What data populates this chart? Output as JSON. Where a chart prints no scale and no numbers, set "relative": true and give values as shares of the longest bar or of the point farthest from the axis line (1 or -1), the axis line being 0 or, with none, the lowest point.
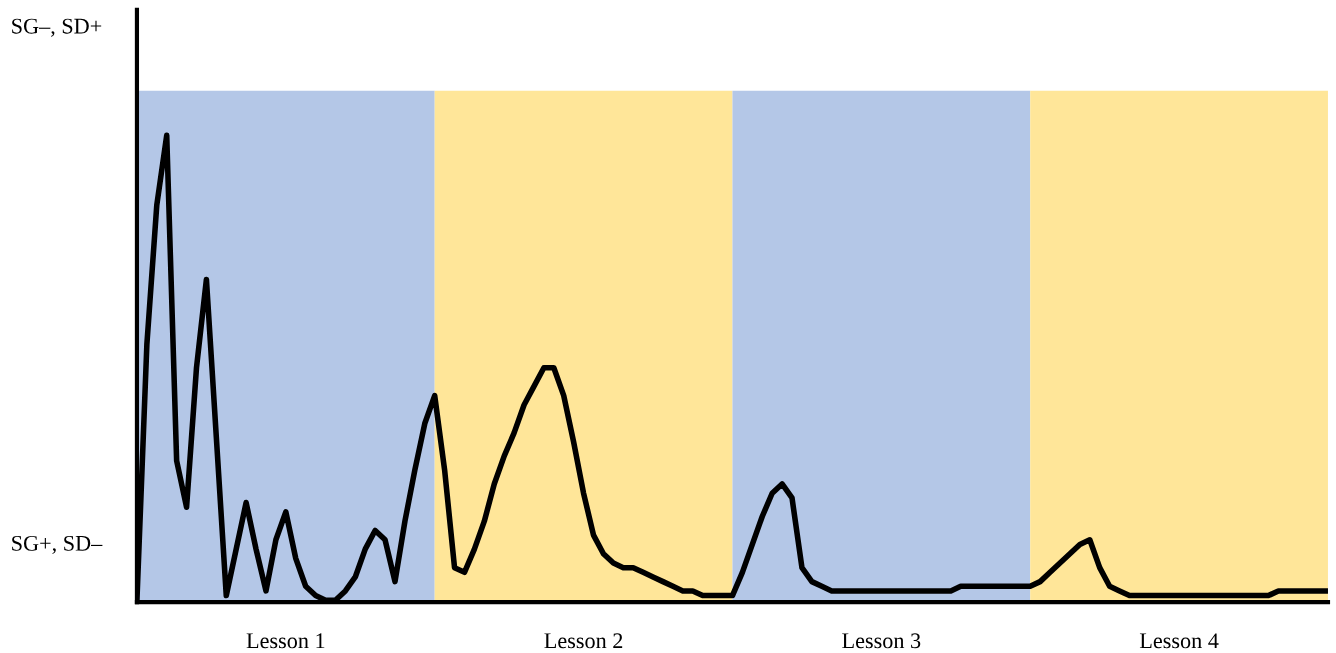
{
  "chart_data": {
    "type": "line",
    "relative": true,
    "annotations": [
      "SG–, SD+",
      "SG+, SD–"
    ],
    "categories": [
      null,
      null,
      null,
      null,
      null,
      null,
      null,
      null,
      null,
      null,
      null,
      null,
      null,
      null,
      null,
      "Lesson 1",
      null,
      null,
      null,
      null,
      null,
      null,
      null,
      null,
      null,
      null,
      null,
      null,
      null,
      null,
      null,
      null,
      null,
      null,
      null,
      null,
      null,
      null,
      null,
      null,
      null,
      null,
      null,
      null,
      null,
      "Lesson 2",
      null,
      null,
      null,
      null,
      null,
      null,
      null,
      null,
      null,
      null,
      null,
      null,
      null,
      null,
      null,
      null,
      null,
      null,
      null,
      null,
      null,
      null,
      null,
      null,
      null,
      null,
      null,
      null,
      null,
      "Lesson 3",
      null,
      null,
      null,
      null,
      null,
      null,
      null,
      null,
      null,
      null,
      null,
      null,
      null,
      null,
      null,
      null,
      null,
      null,
      null,
      null,
      null,
      null,
      null,
      null,
      null,
      null,
      null,
      null,
      null,
      "Lesson 4",
      null,
      null,
      null,
      null,
      null,
      null,
      null,
      null,
      null,
      null,
      null,
      null,
      null,
      null,
      null
    ],
    "series": [
      {
        "color": "#000000",
        "values": [
          0.0,
          0.55,
          0.85,
          1.0,
          0.3,
          0.2,
          0.5,
          0.69,
          0.35,
          0.01,
          0.11,
          0.21,
          0.11,
          0.02,
          0.13,
          0.19,
          0.09,
          0.03,
          0.01,
          0.0,
          0.0,
          0.02,
          0.05,
          0.11,
          0.15,
          0.13,
          0.04,
          0.17,
          0.28,
          0.38,
          0.44,
          0.28,
          0.07,
          0.06,
          0.11,
          0.17,
          0.25,
          0.31,
          0.36,
          0.42,
          0.46,
          0.5,
          0.5,
          0.44,
          0.34,
          0.23,
          0.14,
          0.1,
          0.08,
          0.07,
          0.07,
          0.06,
          0.05,
          0.04,
          0.03,
          0.02,
          0.02,
          0.01,
          0.01,
          0.01,
          0.01,
          0.06,
          0.12,
          0.18,
          0.23,
          0.25,
          0.22,
          0.07,
          0.04,
          0.03,
          0.02,
          0.02,
          0.02,
          0.02,
          0.02,
          0.02,
          0.02,
          0.02,
          0.02,
          0.02,
          0.02,
          0.02,
          0.02,
          0.03,
          0.03,
          0.03,
          0.03,
          0.03,
          0.03,
          0.03,
          0.03,
          0.04,
          0.06,
          0.08,
          0.1,
          0.12,
          0.13,
          0.07,
          0.03,
          0.02,
          0.01,
          0.01,
          0.01,
          0.01,
          0.01,
          0.01,
          0.01,
          0.01,
          0.01,
          0.01,
          0.01,
          0.01,
          0.01,
          0.01,
          0.01,
          0.02,
          0.02,
          0.02,
          0.02,
          0.02,
          0.02
        ]
      }
    ]
  }
}
